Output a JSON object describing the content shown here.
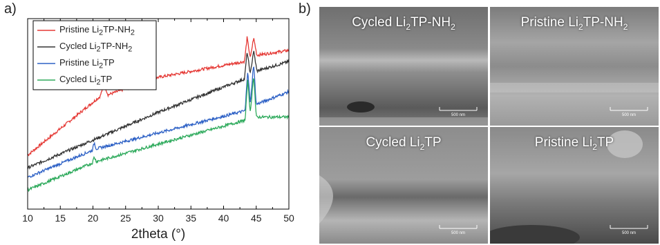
{
  "panels": {
    "a": "a)",
    "b": "b)"
  },
  "chart_data": {
    "type": "line",
    "xlabel": "2theta (°)",
    "ylabel": "",
    "xlim": [
      10,
      50
    ],
    "xticks": [
      10,
      15,
      20,
      25,
      30,
      35,
      40,
      45,
      50
    ],
    "yticks_labeled": false,
    "grid": false,
    "legend": "top-left",
    "series": [
      {
        "name": "Pristine Li2TP-NH2",
        "name_html": "Pristine Li<sub>2</sub>TP-NH<sub>2</sub>",
        "color": "#e53935",
        "x": [
          10,
          21.1,
          21.7,
          22.3,
          30,
          43.2,
          43.6,
          44.1,
          44.6,
          45.1,
          50
        ],
        "y": [
          0.14,
          0.51,
          0.59,
          0.52,
          0.63,
          0.73,
          0.88,
          0.75,
          0.88,
          0.77,
          0.8
        ]
      },
      {
        "name": "Cycled Li2TP-NH2",
        "name_html": "Cycled Li<sub>2</sub>TP-NH<sub>2</sub>",
        "color": "#333333",
        "x": [
          10,
          30,
          43.2,
          43.6,
          44.1,
          44.6,
          45.1,
          50
        ],
        "y": [
          0.06,
          0.41,
          0.62,
          0.79,
          0.65,
          0.8,
          0.67,
          0.73
        ]
      },
      {
        "name": "Pristine Li2TP",
        "name_html": "Pristine Li<sub>2</sub>TP",
        "color": "#2f62c6",
        "x": [
          10,
          19.9,
          20.2,
          20.5,
          30,
          43.3,
          43.7,
          44.1,
          44.6,
          45.0,
          50
        ],
        "y": [
          0.0,
          0.17,
          0.22,
          0.18,
          0.28,
          0.42,
          0.68,
          0.46,
          0.72,
          0.46,
          0.54
        ]
      },
      {
        "name": "Cycled Li2TP",
        "name_html": "Cycled Li<sub>2</sub>TP",
        "color": "#2eaa5c",
        "x": [
          10,
          19.9,
          20.2,
          20.5,
          30,
          43.3,
          43.7,
          44.1,
          44.6,
          45.0,
          50
        ],
        "y": [
          -0.08,
          0.09,
          0.13,
          0.1,
          0.21,
          0.36,
          0.62,
          0.4,
          0.65,
          0.38,
          0.38
        ]
      }
    ]
  },
  "sem_images": [
    {
      "title": "Cycled Li<sub>2</sub>TP-NH<sub>2</sub>",
      "scale": "500 nm"
    },
    {
      "title": "Pristine Li<sub>2</sub>TP-NH<sub>2</sub>",
      "scale": "500 nm"
    },
    {
      "title": "Cycled Li<sub>2</sub>TP",
      "scale": "500 nm"
    },
    {
      "title": "Pristine Li<sub>2</sub>TP",
      "scale": "500 nm"
    }
  ]
}
